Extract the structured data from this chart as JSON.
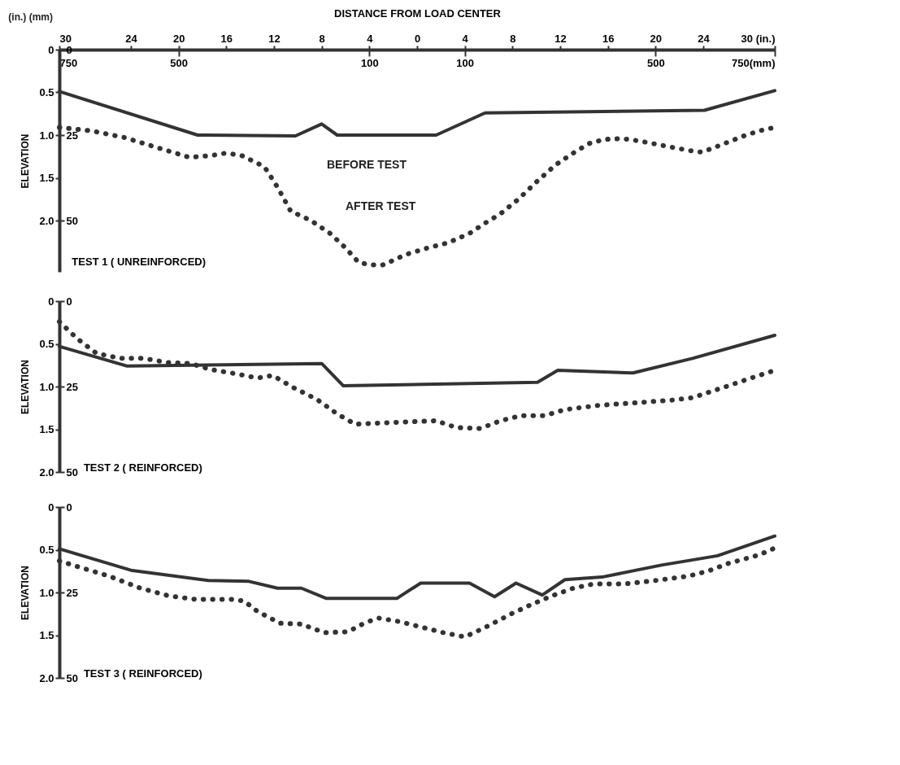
{
  "chart_data": [
    {
      "type": "line",
      "title": "TEST 1 ( UNREINFORCED)",
      "xlabel": "DISTANCE FROM LOAD CENTER",
      "ylabel": "ELEVATION",
      "annotations": [
        "(in.) (mm)",
        "BEFORE TEST",
        "AFTER TEST"
      ],
      "xlim": [
        -30,
        30
      ],
      "xticks": [
        {
          "value": -30,
          "label": "30"
        },
        {
          "value": -24,
          "label": "24"
        },
        {
          "value": -20,
          "label": "20"
        },
        {
          "value": -16,
          "label": "16"
        },
        {
          "value": -12,
          "label": "12"
        },
        {
          "value": -8,
          "label": "8"
        },
        {
          "value": -4,
          "label": "4"
        },
        0,
        4,
        8,
        12,
        16,
        20,
        24,
        {
          "value": 30,
          "label": "30 (in.)"
        }
      ],
      "x2lim": [
        -750,
        750
      ],
      "x2ticks": [
        {
          "value": -750,
          "label": "750"
        },
        {
          "value": -500,
          "label": "500"
        },
        {
          "value": -100,
          "label": "100"
        },
        {
          "value": 100,
          "label": "100"
        },
        {
          "value": 500,
          "label": "500"
        },
        {
          "value": 750,
          "label": "750(mm)"
        }
      ],
      "ylim": [
        2.6,
        0
      ],
      "yticks": [
        {
          "value": 0,
          "label": "0"
        },
        {
          "value": 0.5,
          "label": "0.5"
        },
        {
          "value": 1,
          "label": "1.0"
        },
        {
          "value": 1.5,
          "label": "1.5"
        },
        {
          "value": 2,
          "label": "2.0"
        }
      ],
      "y2lim": [
        65,
        0
      ],
      "y2ticks": [
        {
          "value": 0,
          "label": "0"
        },
        {
          "value": 25,
          "label": "25"
        },
        {
          "value": 50,
          "label": "50"
        }
      ],
      "series": [
        {
          "color": "#333333",
          "line_style": "solid",
          "x": [
            -30,
            -18.4,
            -10.2,
            -8.0,
            -6.7,
            1.6,
            5.7,
            24.1,
            30
          ],
          "values": [
            0.49,
            1.0,
            1.01,
            0.87,
            1.0,
            1.0,
            0.74,
            0.71,
            0.48
          ]
        },
        {
          "color": "#333333",
          "line_style": "dotted",
          "x": [
            -30,
            -27.3,
            -24.5,
            -21.7,
            -19.1,
            -17.3,
            -16.0,
            -14.7,
            -12.8,
            -11.7,
            -10.6,
            -8.9,
            -7.3,
            -6.0,
            -4.9,
            -3.9,
            -2.9,
            -1.9,
            -1.0,
            0.9,
            2.6,
            4.4,
            5.7,
            7.0,
            8.5,
            10.0,
            11.6,
            13.1,
            14.4,
            15.7,
            17.2,
            18.7,
            20.9,
            22.8,
            23.9,
            25.2,
            27.4,
            28.7,
            30
          ],
          "values": [
            0.91,
            0.95,
            1.03,
            1.15,
            1.26,
            1.24,
            1.21,
            1.24,
            1.37,
            1.61,
            1.89,
            2.0,
            2.15,
            2.32,
            2.49,
            2.52,
            2.52,
            2.46,
            2.4,
            2.32,
            2.26,
            2.15,
            2.03,
            1.92,
            1.75,
            1.55,
            1.35,
            1.21,
            1.1,
            1.05,
            1.04,
            1.07,
            1.13,
            1.18,
            1.2,
            1.13,
            1.01,
            0.95,
            0.91
          ]
        }
      ]
    },
    {
      "type": "line",
      "title": "TEST 2 ( REINFORCED)",
      "ylabel": "ELEVATION",
      "tick_labels": "y",
      "xlim": [
        -30,
        30
      ],
      "ylim": [
        2,
        0
      ],
      "yticks": [
        {
          "value": 0,
          "label": "0"
        },
        {
          "value": 0.5,
          "label": "0.5"
        },
        {
          "value": 1,
          "label": "1.0"
        },
        {
          "value": 1.5,
          "label": "1.5"
        },
        {
          "value": 2,
          "label": "2.0"
        }
      ],
      "y2lim": [
        50,
        0
      ],
      "y2ticks": [
        {
          "value": 0,
          "label": "0"
        },
        {
          "value": 25,
          "label": "25"
        },
        {
          "value": 50,
          "label": "50"
        }
      ],
      "series": [
        {
          "color": "#333333",
          "line_style": "solid",
          "x": [
            -30,
            -24.3,
            -8.0,
            -6.2,
            10.1,
            11.8,
            18.1,
            23.1,
            30
          ],
          "values": [
            0.53,
            0.76,
            0.73,
            0.99,
            0.95,
            0.81,
            0.84,
            0.67,
            0.4
          ]
        },
        {
          "color": "#333333",
          "line_style": "dotted",
          "x": [
            -30,
            -28.5,
            -26.9,
            -24.9,
            -23.0,
            -20.8,
            -19.0,
            -17.3,
            -15.2,
            -13.4,
            -12.1,
            -10.4,
            -8.4,
            -6.7,
            -5.2,
            -2.1,
            1.6,
            3.3,
            5.3,
            7.0,
            8.7,
            10.7,
            12.4,
            15.2,
            18.3,
            21.3,
            23.1,
            25.7,
            27.8,
            30
          ],
          "values": [
            0.24,
            0.44,
            0.61,
            0.67,
            0.67,
            0.72,
            0.73,
            0.8,
            0.85,
            0.9,
            0.87,
            1.01,
            1.15,
            1.32,
            1.44,
            1.42,
            1.4,
            1.48,
            1.49,
            1.4,
            1.34,
            1.34,
            1.27,
            1.22,
            1.19,
            1.16,
            1.13,
            1.01,
            0.91,
            0.81
          ]
        }
      ]
    },
    {
      "type": "line",
      "title": "TEST 3 ( REINFORCED)",
      "ylabel": "ELEVATION",
      "tick_labels": "y",
      "xlim": [
        -30,
        30
      ],
      "ylim": [
        2,
        0
      ],
      "yticks": [
        {
          "value": 0,
          "label": "0"
        },
        {
          "value": 0.5,
          "label": "0.5"
        },
        {
          "value": 1,
          "label": "1.0"
        },
        {
          "value": 1.5,
          "label": "1.5"
        },
        {
          "value": 2,
          "label": "2.0"
        }
      ],
      "y2lim": [
        50,
        0
      ],
      "y2ticks": [
        {
          "value": 0,
          "label": "0"
        },
        {
          "value": 25,
          "label": "25"
        },
        {
          "value": 50,
          "label": "50"
        }
      ],
      "series": [
        {
          "color": "#333333",
          "line_style": "solid",
          "x": [
            -30,
            -24.0,
            -17.5,
            -14.1,
            -11.7,
            -9.7,
            -7.6,
            -1.7,
            0.3,
            4.4,
            6.5,
            8.3,
            10.5,
            12.4,
            15.5,
            20.5,
            25.2,
            30
          ],
          "values": [
            0.49,
            0.74,
            0.86,
            0.87,
            0.95,
            0.95,
            1.07,
            1.07,
            0.89,
            0.89,
            1.05,
            0.89,
            1.03,
            0.85,
            0.82,
            0.68,
            0.57,
            0.34
          ]
        },
        {
          "color": "#333333",
          "line_style": "dotted",
          "x": [
            -30,
            -28.4,
            -25.8,
            -23.2,
            -20.8,
            -18.6,
            -15.6,
            -14.5,
            -13.4,
            -11.5,
            -9.7,
            -7.8,
            -5.8,
            -4.3,
            -3.2,
            -1.5,
            0.5,
            2.2,
            4.0,
            5.7,
            7.9,
            9.6,
            11.3,
            13.1,
            14.8,
            17.4,
            20.0,
            22.7,
            24.4,
            26.1,
            28.7,
            30
          ],
          "values": [
            0.63,
            0.7,
            0.81,
            0.95,
            1.04,
            1.08,
            1.08,
            1.1,
            1.22,
            1.36,
            1.37,
            1.47,
            1.46,
            1.35,
            1.3,
            1.34,
            1.41,
            1.47,
            1.52,
            1.41,
            1.25,
            1.14,
            1.04,
            0.95,
            0.9,
            0.9,
            0.86,
            0.81,
            0.75,
            0.66,
            0.56,
            0.48
          ]
        }
      ]
    }
  ]
}
